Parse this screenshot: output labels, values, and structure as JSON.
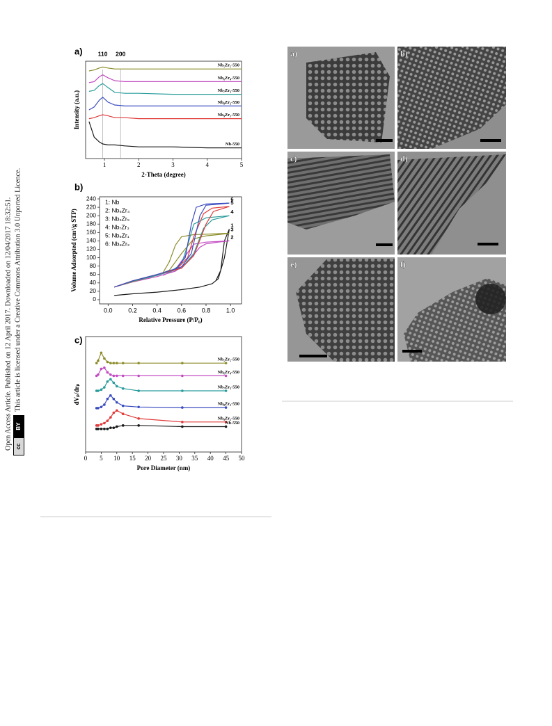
{
  "sidebar": {
    "line1": "Open Access Article. Published on 12 April 2017. Downloaded on 12/04/2017 18:32:51.",
    "line2": "This article is licensed under a Creative Commons Attribution 3.0 Unported Licence.",
    "badge_cc": "cc",
    "badge_by": "BY"
  },
  "chart_data": [
    {
      "type": "line",
      "label": "a)",
      "x_label": "2-Theta (degree)",
      "y_label": "Intensity (a.u.)",
      "xlim": [
        0.45,
        5
      ],
      "xticks": [
        1,
        2,
        3,
        4,
        5
      ],
      "ylim": [
        0,
        100
      ],
      "series_labels": "inline",
      "markers": false,
      "peaks": [
        {
          "label": "110",
          "x": 0.95
        },
        {
          "label": "200",
          "x": 1.47
        }
      ],
      "x": [
        0.55,
        0.7,
        0.85,
        0.95,
        1.1,
        1.3,
        1.6,
        2,
        3,
        4,
        5
      ],
      "series": [
        {
          "name": "Nb₅Zr₅-550",
          "color": "#8c8c2a",
          "values": [
            90,
            91,
            93,
            94,
            93,
            92,
            92,
            92,
            92,
            92,
            92
          ]
        },
        {
          "name": "Nb₆Zr₄-550",
          "color": "#c24cc2",
          "values": [
            78,
            79,
            84,
            86,
            83,
            80,
            79,
            79,
            79,
            79,
            79
          ]
        },
        {
          "name": "Nb₇Zr₃-550",
          "color": "#2a9c9c",
          "values": [
            69,
            70,
            75,
            77,
            73,
            68,
            67,
            67,
            66,
            66,
            66
          ]
        },
        {
          "name": "Nb₈Zr₂-550",
          "color": "#3a4cc0",
          "values": [
            50,
            53,
            60,
            63,
            58,
            55,
            54,
            54,
            54,
            54,
            54
          ]
        },
        {
          "name": "Nb₉Zr₁-550",
          "color": "#e03a3a",
          "values": [
            41,
            42,
            44,
            45,
            44,
            42,
            42,
            41,
            41,
            41,
            41
          ]
        },
        {
          "name": "Nb-550",
          "color": "#1a1a1a",
          "values": [
            38,
            22,
            17,
            15,
            14,
            14,
            13,
            12,
            12,
            11,
            11
          ]
        }
      ]
    },
    {
      "type": "line",
      "label": "b)",
      "x_label": "Relative Pressure (P/P₀)",
      "y_label": "Volume Adsorpted (cm³/g STP)",
      "xlim": [
        -0.07,
        1.09
      ],
      "xticks": [
        {
          "value": 0,
          "label": "0.0"
        },
        {
          "value": 0.2,
          "label": "0.2"
        },
        {
          "value": 0.4,
          "label": "0.4"
        },
        {
          "value": 0.6,
          "label": "0.6"
        },
        {
          "value": 0.8,
          "label": "0.8"
        },
        {
          "value": 1,
          "label": "1.0"
        }
      ],
      "ylim": [
        -10,
        245
      ],
      "yticks": [
        0,
        20,
        40,
        60,
        80,
        100,
        120,
        140,
        160,
        180,
        200,
        220,
        240
      ],
      "series_labels": "legend",
      "legend": "upper left",
      "markers": false,
      "series": [
        {
          "name": "1: Nb",
          "tag": "1",
          "color": "#1a1a1a",
          "x": [
            0.05,
            0.2,
            0.4,
            0.6,
            0.75,
            0.85,
            0.9,
            0.95,
            0.99,
            0.95,
            0.92,
            0.88
          ],
          "values": [
            10,
            14,
            18,
            24,
            30,
            38,
            50,
            100,
            168,
            140,
            70,
            45
          ]
        },
        {
          "name": "2: Nb₆Zr₄",
          "tag": "2",
          "color": "#c24cc2",
          "x": [
            0.05,
            0.2,
            0.4,
            0.55,
            0.65,
            0.75,
            0.8,
            0.9,
            0.99,
            0.8,
            0.7,
            0.62,
            0.55,
            0.45
          ],
          "values": [
            30,
            42,
            55,
            68,
            90,
            125,
            133,
            137,
            140,
            137,
            132,
            100,
            72,
            58
          ]
        },
        {
          "name": "3: Nb₅Zr₅",
          "tag": "3",
          "color": "#8c8c2a",
          "x": [
            0.05,
            0.2,
            0.4,
            0.5,
            0.6,
            0.7,
            0.8,
            0.9,
            0.99,
            0.7,
            0.6,
            0.55,
            0.5,
            0.45
          ],
          "values": [
            30,
            43,
            58,
            70,
            110,
            145,
            152,
            155,
            158,
            155,
            150,
            130,
            90,
            65
          ]
        },
        {
          "name": "4: Nb₇Zr₃",
          "tag": "4",
          "color": "#2a9c9c",
          "x": [
            0.05,
            0.2,
            0.4,
            0.6,
            0.7,
            0.78,
            0.85,
            0.99,
            0.8,
            0.7,
            0.65,
            0.6,
            0.5
          ],
          "values": [
            30,
            44,
            58,
            75,
            110,
            170,
            190,
            200,
            195,
            180,
            130,
            85,
            65
          ]
        },
        {
          "name": "5: Nb₉Zr₁",
          "tag": "5",
          "color": "#e03a3a",
          "x": [
            0.05,
            0.2,
            0.4,
            0.6,
            0.7,
            0.8,
            0.86,
            0.99,
            0.85,
            0.78,
            0.7,
            0.65,
            0.55
          ],
          "values": [
            30,
            45,
            60,
            75,
            105,
            180,
            210,
            222,
            218,
            205,
            150,
            100,
            70
          ]
        },
        {
          "name": "6: Nb₈Zr₂",
          "tag": "6",
          "color": "#3a4cc0",
          "x": [
            0.05,
            0.2,
            0.4,
            0.6,
            0.68,
            0.75,
            0.8,
            0.99,
            0.8,
            0.72,
            0.68,
            0.63,
            0.55
          ],
          "values": [
            30,
            45,
            60,
            78,
            110,
            200,
            225,
            230,
            228,
            220,
            180,
            100,
            72
          ]
        }
      ]
    },
    {
      "type": "line",
      "label": "c)",
      "x_label": "Pore Diameter (nm)",
      "y_label": "dVₚ/drₚ",
      "xlim": [
        0,
        50
      ],
      "xticks": [
        0,
        5,
        10,
        15,
        20,
        25,
        30,
        35,
        40,
        45,
        50
      ],
      "ylim": [
        0,
        100
      ],
      "series_labels": "inline",
      "markers": true,
      "x": [
        3.5,
        4,
        5,
        6,
        7,
        8,
        9,
        10,
        12,
        17,
        31,
        45
      ],
      "series": [
        {
          "name": "Nb₅Zr₅-550",
          "color": "#8c8c2a",
          "values": [
            77,
            79,
            86,
            81,
            78,
            77,
            77,
            77,
            77,
            77,
            77,
            77
          ]
        },
        {
          "name": "Nb₆Zr₄-550",
          "color": "#c24cc2",
          "values": [
            66,
            67,
            72,
            73,
            69,
            67,
            66,
            66,
            66,
            66,
            66,
            66
          ]
        },
        {
          "name": "Nb₇Zr₃-550",
          "color": "#2a9c9c",
          "values": [
            53,
            53,
            54,
            56,
            61,
            63,
            60,
            57,
            55,
            53,
            53,
            53
          ]
        },
        {
          "name": "Nb₈Zr₂-550",
          "color": "#3a4cc0",
          "values": [
            38,
            38,
            39,
            41,
            46,
            49,
            46,
            43,
            40,
            39,
            38.5,
            38.5
          ]
        },
        {
          "name": "Nb₉Zr₁-550",
          "color": "#e03a3a",
          "values": [
            23,
            23,
            24,
            25,
            27,
            30,
            34,
            36,
            33,
            29,
            26,
            26
          ]
        },
        {
          "name": "Nb-550",
          "color": "#1a1a1a",
          "values": [
            20,
            20,
            20,
            20,
            20,
            21,
            21,
            22,
            23,
            23,
            22,
            22
          ]
        }
      ]
    }
  ],
  "tem_panels": [
    "a)",
    "b)",
    "c)",
    "d)",
    "e)",
    "f)"
  ]
}
